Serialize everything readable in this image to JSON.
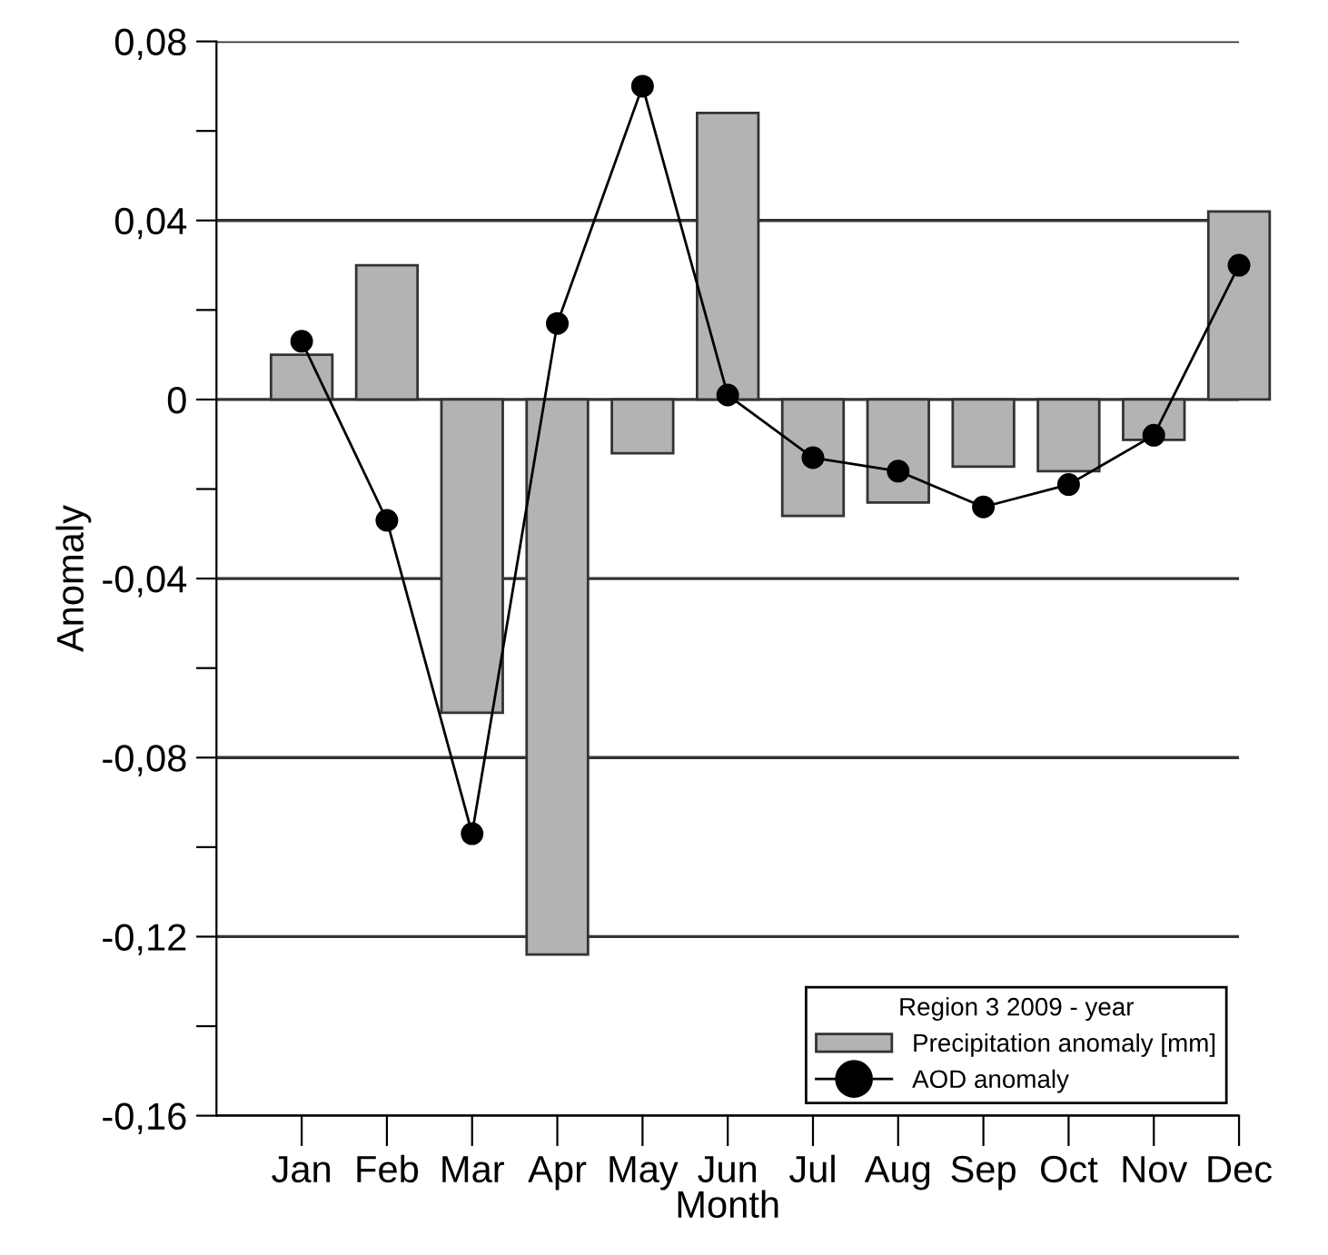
{
  "chart_data": {
    "type": "bar",
    "xlabel": "Month",
    "ylabel": "Anomaly",
    "legend_title": "Region 3 2009 - year",
    "categories": [
      "Jan",
      "Feb",
      "Mar",
      "Apr",
      "May",
      "Jun",
      "Jul",
      "Aug",
      "Sep",
      "Oct",
      "Nov",
      "Dec"
    ],
    "series": [
      {
        "name": "Precipitation anomaly [mm]",
        "color": "#b3b3b3",
        "values": [
          0.01,
          0.03,
          -0.07,
          -0.124,
          -0.012,
          0.064,
          -0.026,
          -0.023,
          -0.015,
          -0.016,
          -0.009,
          0.042
        ]
      },
      {
        "name": "AOD anomaly",
        "type": "line",
        "color": "#000000",
        "marker": "circle",
        "values": [
          0.013,
          -0.027,
          -0.097,
          0.017,
          0.07,
          0.001,
          -0.013,
          -0.016,
          -0.024,
          -0.019,
          -0.008,
          0.03
        ]
      }
    ],
    "ylim": [
      -0.16,
      0.08
    ],
    "yticks": [
      {
        "value": -0.16,
        "label": "-0,16"
      },
      {
        "value": -0.14,
        "label": null
      },
      {
        "value": -0.12,
        "label": "-0,12"
      },
      {
        "value": -0.1,
        "label": null
      },
      {
        "value": -0.08,
        "label": "-0,08"
      },
      {
        "value": -0.06,
        "label": null
      },
      {
        "value": -0.04,
        "label": "-0,04"
      },
      {
        "value": -0.02,
        "label": null
      },
      {
        "value": 0,
        "label": "0"
      },
      {
        "value": 0.02,
        "label": null
      },
      {
        "value": 0.04,
        "label": "0,04"
      },
      {
        "value": 0.06,
        "label": null
      },
      {
        "value": 0.08,
        "label": "0,08"
      }
    ],
    "grid": "y",
    "legend": "bottom right"
  }
}
